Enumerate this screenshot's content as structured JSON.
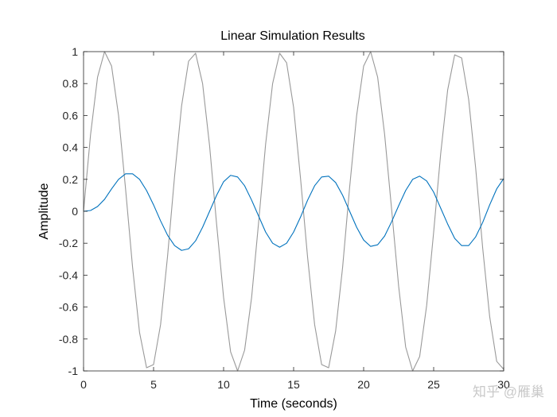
{
  "chart_data": {
    "type": "line",
    "title": "Linear Simulation Results",
    "xlabel": "Time (seconds)",
    "ylabel": "Amplitude",
    "xlim": [
      0,
      30
    ],
    "ylim": [
      -1,
      1
    ],
    "x_ticks": [
      "0",
      "5",
      "10",
      "15",
      "20",
      "25",
      "30"
    ],
    "y_ticks": [
      "-1",
      "-0.8",
      "-0.6",
      "-0.4",
      "-0.2",
      "0",
      "0.2",
      "0.4",
      "0.6",
      "0.8",
      "1"
    ],
    "grid": false,
    "series": [
      {
        "role": "input",
        "color": "#999999",
        "x": [
          0,
          0.5,
          1,
          1.5,
          2,
          2.5,
          3,
          3.5,
          4,
          4.5,
          5,
          5.5,
          6,
          6.5,
          7,
          7.5,
          8,
          8.5,
          9,
          9.5,
          10,
          10.5,
          11,
          11.5,
          12,
          12.5,
          13,
          13.5,
          14,
          14.5,
          15,
          15.5,
          16,
          16.5,
          17,
          17.5,
          18,
          18.5,
          19,
          19.5,
          20,
          20.5,
          21,
          21.5,
          22,
          22.5,
          23,
          23.5,
          24,
          24.5,
          25,
          25.5,
          26,
          26.5,
          27,
          27.5,
          28,
          28.5,
          29,
          29.5,
          30
        ],
        "y": [
          0.0,
          0.48,
          0.84,
          1.0,
          0.91,
          0.6,
          0.14,
          -0.35,
          -0.76,
          -0.98,
          -0.96,
          -0.71,
          -0.28,
          0.22,
          0.66,
          0.94,
          0.99,
          0.8,
          0.41,
          -0.08,
          -0.54,
          -0.88,
          -1.0,
          -0.87,
          -0.54,
          -0.07,
          0.42,
          0.8,
          0.99,
          0.93,
          0.65,
          0.2,
          -0.29,
          -0.71,
          -0.96,
          -0.98,
          -0.75,
          -0.35,
          0.15,
          0.6,
          0.91,
          1.0,
          0.84,
          0.48,
          0.01,
          -0.47,
          -0.85,
          -1.0,
          -0.91,
          -0.59,
          -0.13,
          0.36,
          0.76,
          0.98,
          0.96,
          0.7,
          0.27,
          -0.23,
          -0.66,
          -0.94,
          -0.99
        ]
      },
      {
        "role": "response",
        "color": "#0072bd",
        "x": [
          0,
          0.5,
          1,
          1.5,
          2,
          2.5,
          3,
          3.5,
          4,
          4.5,
          5,
          5.5,
          6,
          6.5,
          7,
          7.5,
          8,
          8.5,
          9,
          9.5,
          10,
          10.5,
          11,
          11.5,
          12,
          12.5,
          13,
          13.5,
          14,
          14.5,
          15,
          15.5,
          16,
          16.5,
          17,
          17.5,
          18,
          18.5,
          19,
          19.5,
          20,
          20.5,
          21,
          21.5,
          22,
          22.5,
          23,
          23.5,
          24,
          24.5,
          25,
          25.5,
          26,
          26.5,
          27,
          27.5,
          28,
          28.5,
          29,
          29.5,
          30
        ],
        "y": [
          0.0,
          0.005,
          0.03,
          0.075,
          0.14,
          0.2,
          0.235,
          0.235,
          0.2,
          0.13,
          0.04,
          -0.06,
          -0.15,
          -0.215,
          -0.245,
          -0.235,
          -0.185,
          -0.1,
          0.0,
          0.1,
          0.185,
          0.225,
          0.215,
          0.16,
          0.07,
          -0.03,
          -0.13,
          -0.2,
          -0.225,
          -0.2,
          -0.13,
          -0.035,
          0.07,
          0.16,
          0.215,
          0.22,
          0.18,
          0.1,
          0.0,
          -0.1,
          -0.18,
          -0.22,
          -0.21,
          -0.155,
          -0.065,
          0.035,
          0.13,
          0.2,
          0.22,
          0.19,
          0.12,
          0.02,
          -0.08,
          -0.17,
          -0.215,
          -0.215,
          -0.16,
          -0.07,
          0.04,
          0.14,
          0.205
        ]
      }
    ]
  },
  "watermark": "知乎 @雁巢"
}
